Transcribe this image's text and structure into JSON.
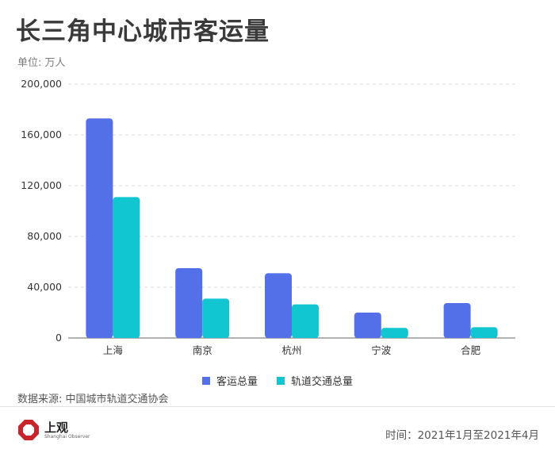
{
  "title": "长三角中心城市客运量",
  "unit_label": "单位: 万人",
  "source": "数据来源: 中国城市轨道交通协会",
  "time": "时间：2021年1月至2021年4月",
  "logo": {
    "text": "上观",
    "subtext": "Shanghai Observer"
  },
  "colors": {
    "series1": "#5470e8",
    "series2": "#12c6d1"
  },
  "chart_data": {
    "type": "bar",
    "categories": [
      "上海",
      "南京",
      "杭州",
      "宁波",
      "合肥"
    ],
    "series": [
      {
        "name": "客运总量",
        "values": [
          173000,
          55000,
          51000,
          20000,
          27500
        ]
      },
      {
        "name": "轨道交通总量",
        "values": [
          111000,
          31000,
          26500,
          8000,
          8500
        ]
      }
    ],
    "yticks": [
      0,
      40000,
      80000,
      120000,
      160000,
      200000
    ],
    "ytick_labels": [
      "0",
      "40,000",
      "80,000",
      "120,000",
      "160,000",
      "200,000"
    ],
    "ylim": [
      0,
      200000
    ],
    "grid": true,
    "legend_position": "bottom"
  }
}
